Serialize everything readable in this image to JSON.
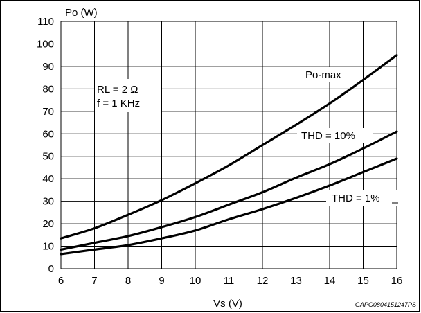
{
  "chart_data": {
    "type": "line",
    "xlabel": "Vs (V)",
    "ylabel": "Po (W)",
    "xlim": [
      6,
      16
    ],
    "ylim": [
      0,
      110
    ],
    "xticks": [
      6,
      7,
      8,
      9,
      10,
      11,
      12,
      13,
      14,
      15,
      16
    ],
    "yticks": [
      0,
      10,
      20,
      30,
      40,
      50,
      60,
      70,
      80,
      90,
      100,
      110
    ],
    "grid": true,
    "conditions": [
      "RL = 2 Ω",
      "f = 1 KHz"
    ],
    "series": [
      {
        "name": "Po-max",
        "x": [
          6,
          7,
          8,
          9,
          10,
          11,
          12,
          13,
          14,
          15,
          16
        ],
        "values": [
          13.5,
          18,
          24,
          30.5,
          38,
          46,
          55,
          64,
          73.5,
          84,
          95
        ]
      },
      {
        "name": "THD = 10%",
        "x": [
          6,
          7,
          8,
          9,
          10,
          11,
          12,
          13,
          14,
          15,
          16
        ],
        "values": [
          8.5,
          11.5,
          14.5,
          18.5,
          23,
          28.5,
          34,
          40.5,
          46.5,
          53.5,
          61
        ]
      },
      {
        "name": "THD = 1%",
        "x": [
          6,
          7,
          8,
          9,
          10,
          11,
          12,
          13,
          14,
          15,
          16
        ],
        "values": [
          6.5,
          8.5,
          10.5,
          13.5,
          17,
          22,
          26.5,
          31.5,
          37,
          43,
          49
        ]
      }
    ],
    "caption": "GAPG0804151247PS"
  }
}
